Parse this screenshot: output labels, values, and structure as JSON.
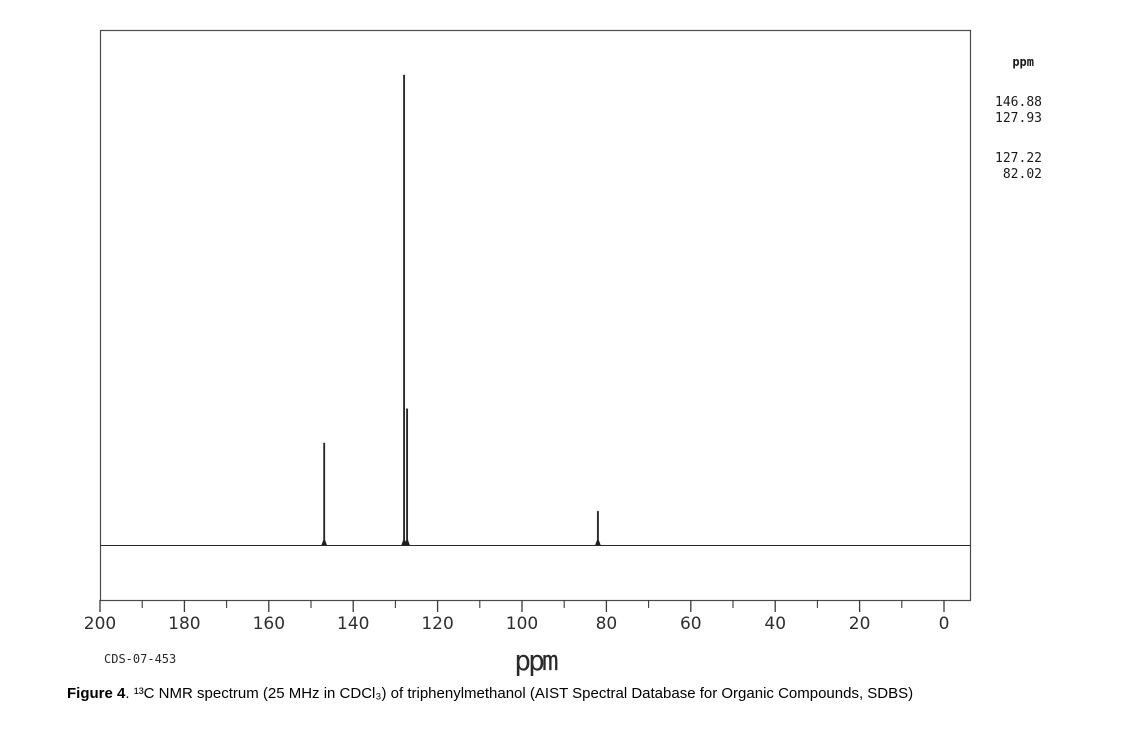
{
  "chart_data": {
    "type": "line",
    "title": "",
    "xlabel": "ppm",
    "x_axis": {
      "min": 0,
      "max": 200,
      "reversed": true,
      "major_ticks": [
        200,
        180,
        160,
        140,
        120,
        100,
        80,
        60,
        40,
        20,
        0
      ],
      "minor_tick_interval": 10
    },
    "peaks": [
      {
        "ppm": 146.88,
        "rel_height": 0.217
      },
      {
        "ppm": 127.93,
        "rel_height": 1.0
      },
      {
        "ppm": 127.22,
        "rel_height": 0.29
      },
      {
        "ppm": 82.02,
        "rel_height": 0.072
      }
    ],
    "grid": false,
    "legend": false
  },
  "peak_table": {
    "header": "ppm",
    "groups": [
      [
        "146.88",
        "127.93"
      ],
      [
        "127.22",
        "82.02"
      ]
    ]
  },
  "footer": {
    "sample_id": "CDS-07-453",
    "xlabel": "ppm"
  },
  "caption": {
    "figure_label": "Figure 4",
    "text": ". ¹³C NMR spectrum (25 MHz in CDCl₃) of triphenylmethanol (AIST Spectral Database for Organic Compounds, SDBS)"
  }
}
